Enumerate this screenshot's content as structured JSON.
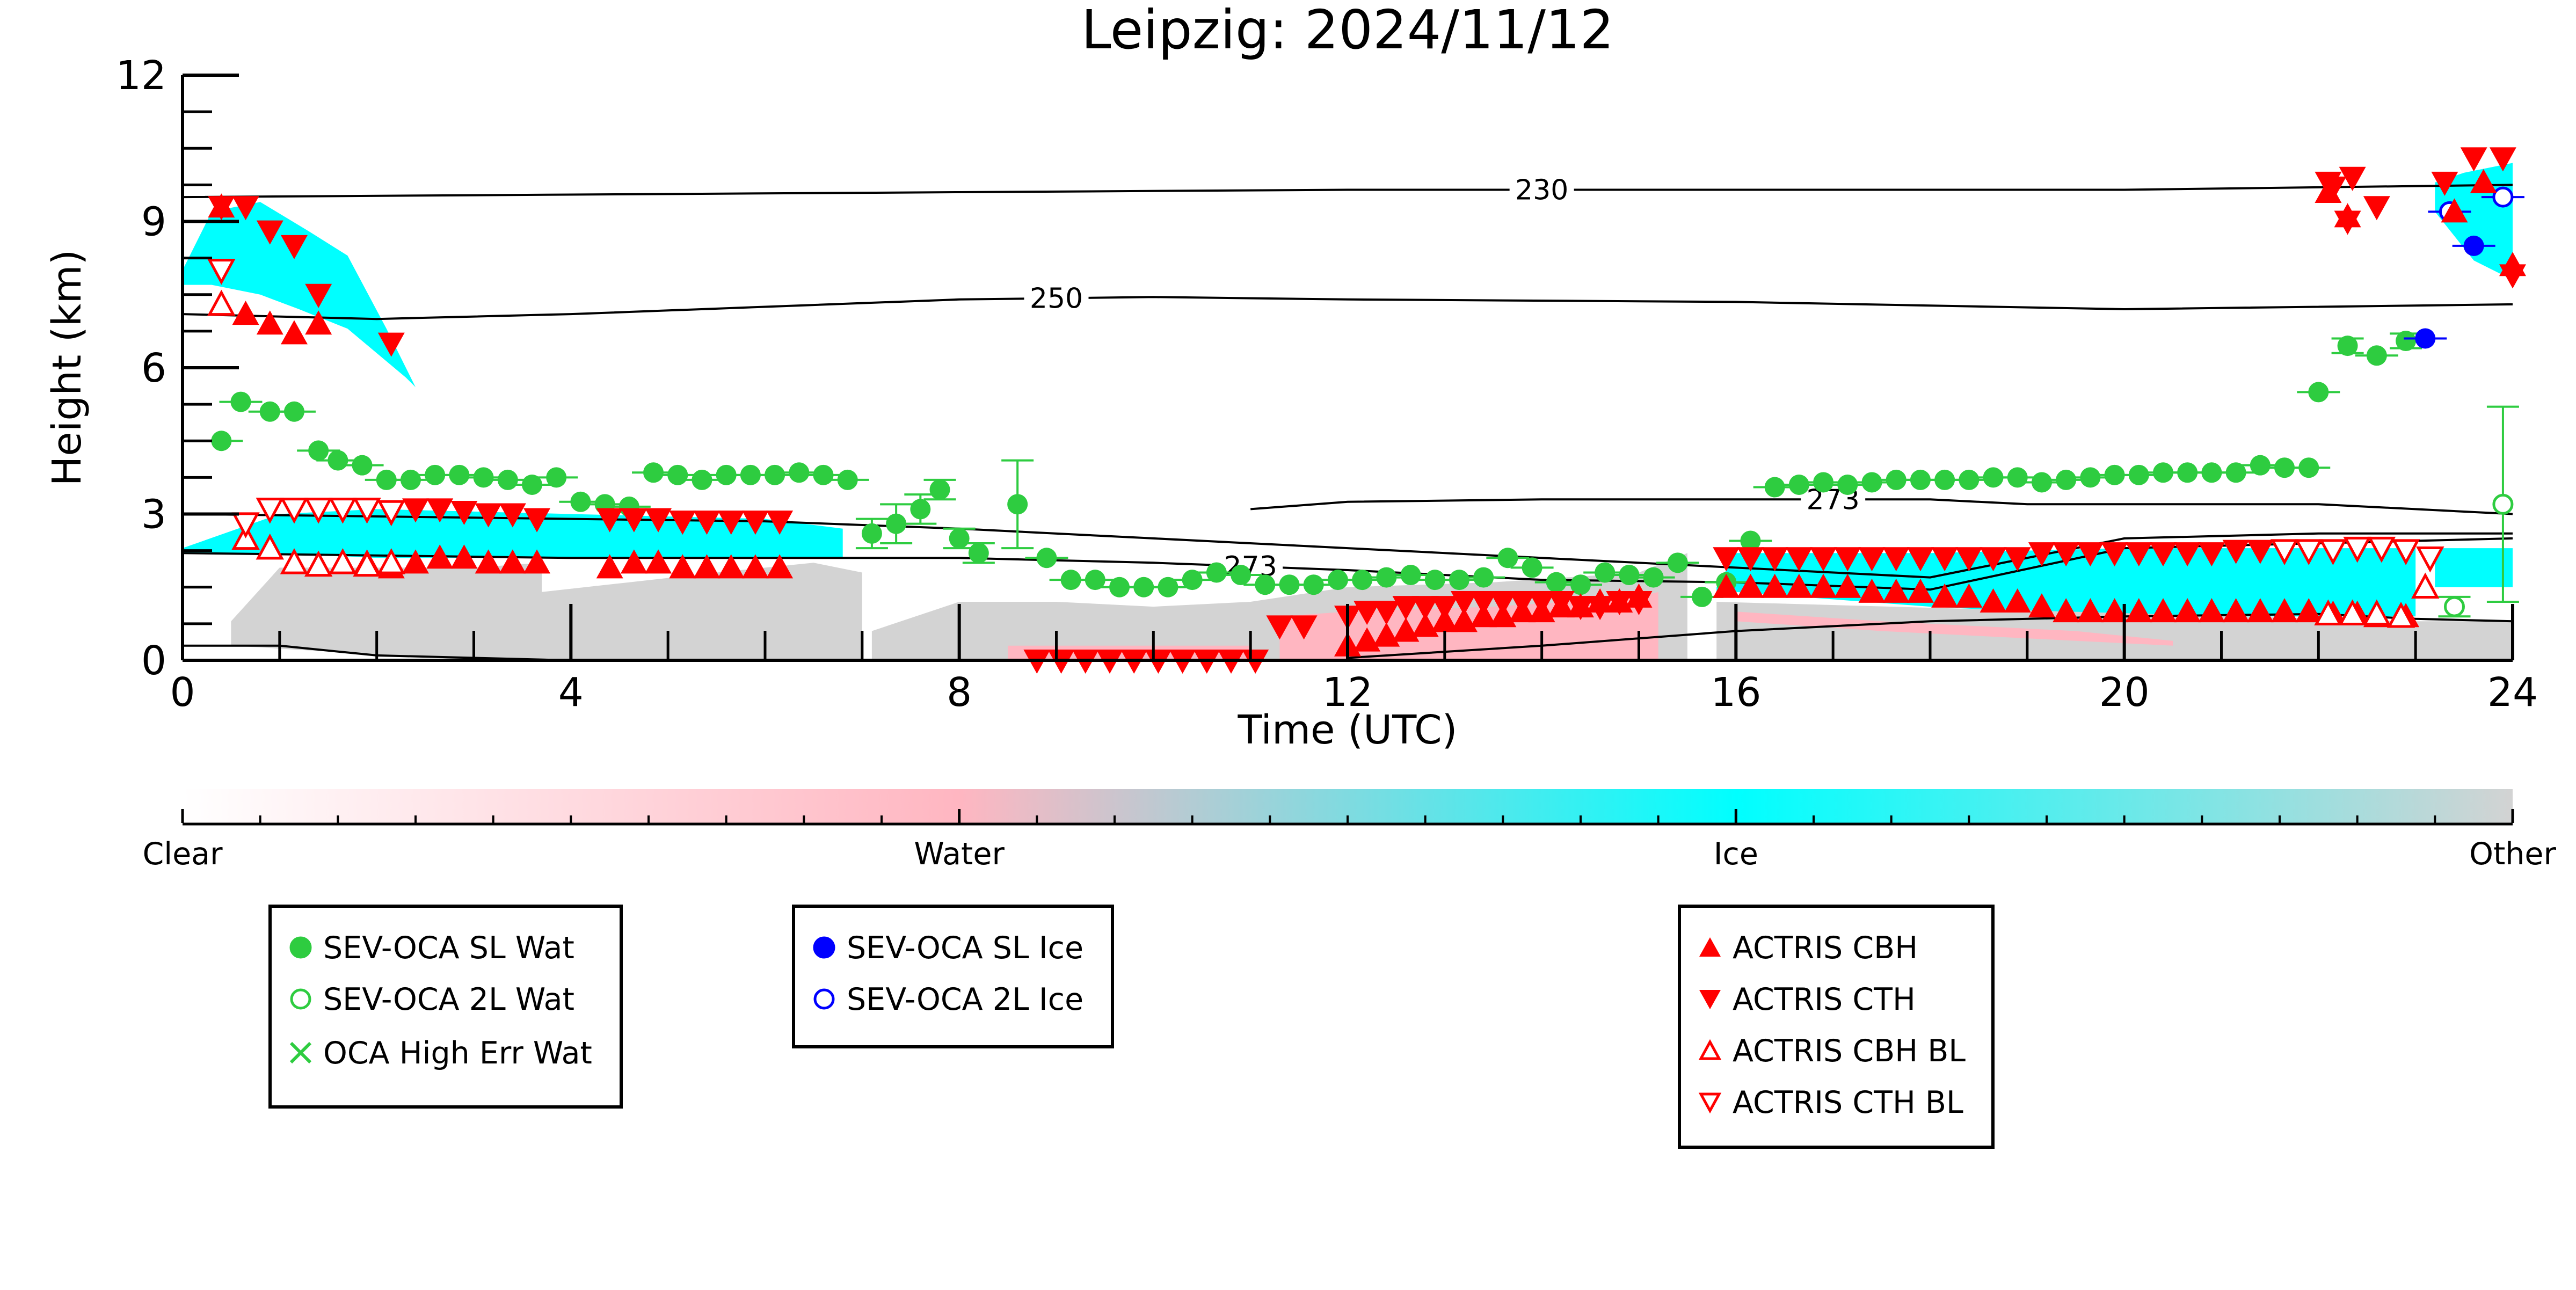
{
  "chart_data": {
    "type": "scatter",
    "title": "Leipzig: 2024/11/12",
    "xlabel": "Time (UTC)",
    "ylabel": "Height (km)",
    "xlim": [
      0,
      24
    ],
    "ylim": [
      0,
      12
    ],
    "x_ticks": [
      0,
      4,
      8,
      12,
      16,
      20,
      24
    ],
    "y_ticks": [
      0,
      3,
      6,
      9,
      12
    ],
    "colors": {
      "water": "#2ecc40",
      "ice": "#0000ff",
      "actris": "#ff0000",
      "cloud_ice": "#00ffff",
      "cloud_water": "#ffb6c1",
      "cloud_other": "#d3d3d3"
    },
    "colorbar": {
      "labels": [
        "Clear",
        "Water",
        "Ice",
        "Other"
      ],
      "gradient": [
        "#ffffff",
        "#ffb6c1",
        "#00ffff",
        "#d3d3d3"
      ]
    },
    "isotherms": [
      {
        "label": "230",
        "x": [
          0,
          4,
          8,
          12,
          16,
          20,
          22,
          24
        ],
        "y": [
          9.5,
          9.55,
          9.6,
          9.65,
          9.65,
          9.65,
          9.7,
          9.75
        ]
      },
      {
        "label": "250",
        "x": [
          0,
          2,
          4,
          6,
          8,
          10,
          12,
          16,
          20,
          24
        ],
        "y": [
          7.1,
          7.0,
          7.1,
          7.25,
          7.4,
          7.45,
          7.4,
          7.35,
          7.2,
          7.3
        ]
      },
      {
        "label": "273",
        "x": [
          0,
          2,
          4,
          6,
          8,
          10,
          12,
          14,
          16,
          18,
          20,
          22,
          24
        ],
        "y": [
          2.2,
          2.15,
          2.1,
          2.1,
          2.1,
          2.0,
          1.85,
          1.65,
          1.6,
          1.45,
          2.3,
          2.4,
          2.5
        ]
      },
      {
        "label": "273",
        "x": [
          11,
          12,
          14,
          16,
          18,
          19,
          20,
          22,
          24
        ],
        "y": [
          3.1,
          3.25,
          3.3,
          3.3,
          3.3,
          3.2,
          3.2,
          3.2,
          3.0
        ]
      },
      {
        "label": "",
        "x": [
          0,
          2,
          4,
          6,
          8,
          10,
          12,
          14,
          16,
          18,
          20,
          22,
          24
        ],
        "y": [
          3.0,
          2.95,
          2.9,
          2.85,
          2.7,
          2.5,
          2.3,
          2.1,
          1.9,
          1.7,
          2.5,
          2.6,
          2.6
        ]
      },
      {
        "label": "",
        "x": [
          0,
          1,
          2,
          3,
          4,
          5
        ],
        "y": [
          0.3,
          0.3,
          0.1,
          0.05,
          0.0,
          0.0
        ]
      },
      {
        "label": "",
        "x": [
          12,
          14,
          16,
          18,
          20,
          22,
          23,
          24
        ],
        "y": [
          0.05,
          0.3,
          0.6,
          0.8,
          0.9,
          0.95,
          0.85,
          0.8
        ]
      }
    ],
    "cloud_regions": [
      {
        "phase": "ice",
        "x": [
          0.0,
          0.3,
          0.8,
          1.3,
          1.7,
          2.1,
          2.4,
          2.3,
          1.7,
          1.2,
          0.8,
          0.3,
          0.0
        ],
        "y": [
          8.0,
          9.2,
          9.4,
          8.8,
          8.3,
          6.8,
          5.6,
          5.8,
          6.8,
          7.2,
          7.5,
          7.7,
          7.7
        ]
      },
      {
        "phase": "ice",
        "x": [
          0.0,
          1.0,
          2.0,
          4.0,
          6.0,
          6.8,
          6.8,
          6.0,
          4.0,
          2.0,
          1.0,
          0.0
        ],
        "y": [
          2.3,
          3.0,
          3.1,
          3.0,
          2.9,
          2.7,
          2.1,
          2.1,
          2.1,
          2.1,
          2.2,
          2.2
        ]
      },
      {
        "phase": "other",
        "x": [
          0.5,
          1.0,
          3.0,
          3.7,
          3.7,
          4.6,
          5.5,
          6.5,
          7.0,
          7.0,
          5.0,
          3.0,
          0.5
        ],
        "y": [
          0.8,
          1.9,
          1.9,
          2.0,
          1.4,
          1.6,
          1.8,
          2.0,
          1.8,
          0.0,
          0.0,
          0.0,
          0.3
        ]
      },
      {
        "phase": "other",
        "x": [
          7.1,
          8.0,
          9.0,
          10.0,
          11.0,
          12.0,
          13.5,
          15.0,
          15.5,
          15.5,
          7.1
        ],
        "y": [
          0.6,
          1.2,
          1.2,
          1.1,
          1.2,
          1.5,
          1.6,
          1.8,
          2.2,
          0.0,
          0.0
        ]
      },
      {
        "phase": "water",
        "x": [
          8.5,
          11.0,
          11.0,
          8.5
        ],
        "y": [
          0.3,
          0.3,
          0.0,
          0.0
        ]
      },
      {
        "phase": "water",
        "x": [
          11.3,
          12.0,
          13.5,
          15.0,
          15.2,
          15.2,
          11.3
        ],
        "y": [
          0.9,
          1.0,
          1.1,
          1.3,
          1.4,
          0.0,
          0.0
        ]
      },
      {
        "phase": "ice",
        "x": [
          15.8,
          16.0,
          18.0,
          20.0,
          22.0,
          23.0,
          23.0,
          22.0,
          20.0,
          18.0,
          16.0,
          15.8
        ],
        "y": [
          1.5,
          2.2,
          2.2,
          2.3,
          2.3,
          2.3,
          0.9,
          0.9,
          0.9,
          1.1,
          1.4,
          1.4
        ]
      },
      {
        "phase": "other",
        "x": [
          15.8,
          23.0,
          24.0,
          24.0,
          15.8
        ],
        "y": [
          1.2,
          0.8,
          0.8,
          0.0,
          0.0
        ]
      },
      {
        "phase": "water",
        "x": [
          16.0,
          17.5,
          19.5,
          20.5,
          20.5,
          19.5,
          17.5,
          16.0
        ],
        "y": [
          1.0,
          0.8,
          0.6,
          0.4,
          0.3,
          0.4,
          0.6,
          0.8
        ]
      },
      {
        "phase": "ice",
        "x": [
          23.2,
          23.5,
          24.0,
          24.0,
          23.6,
          23.2
        ],
        "y": [
          9.8,
          10.0,
          10.2,
          7.8,
          8.2,
          9.2
        ]
      },
      {
        "phase": "ice",
        "x": [
          23.2,
          24.0,
          24.0,
          23.2
        ],
        "y": [
          2.3,
          2.3,
          1.5,
          1.5
        ]
      }
    ],
    "series": [
      {
        "name": "SEV-OCA SL Wat",
        "marker": "filled-circle",
        "color": "#2ecc40",
        "x": [
          0.4,
          0.6,
          0.9,
          1.15,
          1.4,
          1.6,
          1.85,
          2.1,
          2.35,
          2.6,
          2.85,
          3.1,
          3.35,
          3.6,
          3.85,
          4.1,
          4.35,
          4.6,
          4.85,
          5.1,
          5.35,
          5.6,
          5.85,
          6.1,
          6.35,
          6.6,
          6.85,
          7.1,
          7.35,
          7.6,
          7.8,
          8.0,
          8.2,
          8.6,
          8.9,
          9.15,
          9.4,
          9.65,
          9.9,
          10.15,
          10.4,
          10.65,
          10.9,
          11.15,
          11.4,
          11.65,
          11.9,
          12.15,
          12.4,
          12.65,
          12.9,
          13.15,
          13.4,
          13.65,
          13.9,
          14.15,
          14.4,
          14.65,
          14.9,
          15.15,
          15.4,
          15.65,
          15.9,
          16.15,
          16.4,
          16.65,
          16.9,
          17.15,
          17.4,
          17.65,
          17.9,
          18.15,
          18.4,
          18.65,
          18.9,
          19.15,
          19.4,
          19.65,
          19.9,
          20.15,
          20.4,
          20.65,
          20.9,
          21.15,
          21.4,
          21.65,
          21.9,
          22.0,
          22.3,
          22.6,
          22.9
        ],
        "y": [
          4.5,
          5.3,
          5.1,
          5.1,
          4.3,
          4.1,
          4.0,
          3.7,
          3.7,
          3.8,
          3.8,
          3.75,
          3.7,
          3.6,
          3.75,
          3.25,
          3.2,
          3.15,
          3.85,
          3.8,
          3.7,
          3.8,
          3.8,
          3.8,
          3.85,
          3.8,
          3.7,
          2.6,
          2.8,
          3.1,
          3.5,
          2.5,
          2.2,
          3.2,
          2.1,
          1.65,
          1.65,
          1.5,
          1.5,
          1.5,
          1.65,
          1.8,
          1.75,
          1.55,
          1.55,
          1.55,
          1.65,
          1.65,
          1.7,
          1.75,
          1.65,
          1.65,
          1.7,
          2.1,
          1.9,
          1.6,
          1.55,
          1.8,
          1.75,
          1.7,
          2.0,
          1.3,
          1.6,
          2.45,
          3.55,
          3.6,
          3.65,
          3.6,
          3.65,
          3.7,
          3.7,
          3.7,
          3.7,
          3.75,
          3.75,
          3.65,
          3.7,
          3.75,
          3.8,
          3.8,
          3.85,
          3.85,
          3.85,
          3.85,
          4.0,
          3.95,
          3.95,
          5.5,
          6.45,
          6.25,
          6.55
        ],
        "err": [
          0.05,
          0.05,
          0.1,
          0.1,
          0.05,
          0.05,
          0.05,
          0.05,
          0.05,
          0.05,
          0.05,
          0.05,
          0.05,
          0.05,
          0.05,
          0.05,
          0.05,
          0.05,
          0.05,
          0.05,
          0.05,
          0.05,
          0.05,
          0.05,
          0.05,
          0.05,
          0.05,
          0.3,
          0.4,
          0.3,
          0.2,
          0.2,
          0.2,
          0.9,
          0.1,
          0.05,
          0.05,
          0.05,
          0.05,
          0.05,
          0.05,
          0.05,
          0.05,
          0.05,
          0.05,
          0.05,
          0.05,
          0.05,
          0.05,
          0.05,
          0.05,
          0.05,
          0.05,
          0.05,
          0.05,
          0.05,
          0.05,
          0.05,
          0.05,
          0.05,
          0.05,
          0.05,
          0.05,
          0.05,
          0.05,
          0.05,
          0.05,
          0.05,
          0.05,
          0.05,
          0.05,
          0.05,
          0.05,
          0.05,
          0.05,
          0.05,
          0.05,
          0.05,
          0.05,
          0.05,
          0.05,
          0.05,
          0.05,
          0.05,
          0.05,
          0.05,
          0.05,
          0.1,
          0.15,
          0.1,
          0.15
        ]
      },
      {
        "name": "SEV-OCA 2L Wat",
        "marker": "open-circle",
        "color": "#2ecc40",
        "x": [
          23.4,
          23.9
        ],
        "y": [
          1.1,
          3.2
        ],
        "err": [
          0.2,
          2.0
        ]
      },
      {
        "name": "OCA High Err Wat",
        "marker": "x",
        "color": "#2ecc40",
        "x": [],
        "y": []
      },
      {
        "name": "SEV-OCA SL Ice",
        "marker": "filled-circle",
        "color": "#0000ff",
        "x": [
          23.1,
          23.6
        ],
        "y": [
          6.6,
          8.5
        ]
      },
      {
        "name": "SEV-OCA 2L Ice",
        "marker": "open-circle",
        "color": "#0000ff",
        "x": [
          23.35,
          23.9
        ],
        "y": [
          9.2,
          9.5
        ]
      },
      {
        "name": "ACTRIS CBH",
        "marker": "triangle-up",
        "color": "#ff0000",
        "x": [
          0.4,
          0.65,
          0.9,
          1.15,
          1.4,
          1.65,
          1.9,
          2.15,
          2.4,
          2.65,
          2.9,
          3.15,
          3.4,
          3.65,
          4.4,
          4.65,
          4.9,
          5.15,
          5.4,
          5.65,
          5.9,
          6.15,
          12.0,
          12.2,
          12.4,
          12.6,
          12.8,
          13.0,
          13.2,
          13.4,
          13.6,
          13.8,
          14.0,
          14.2,
          14.4,
          14.6,
          14.8,
          15.0,
          15.9,
          16.15,
          16.4,
          16.65,
          16.9,
          17.15,
          17.4,
          17.65,
          17.9,
          18.15,
          18.4,
          18.65,
          18.9,
          19.15,
          19.4,
          19.65,
          19.9,
          20.15,
          20.4,
          20.65,
          20.9,
          21.15,
          21.4,
          21.65,
          21.9,
          22.15,
          22.4,
          22.6,
          22.9,
          23.4,
          23.7,
          24.0,
          22.1,
          22.3
        ],
        "y": [
          9.3,
          7.1,
          6.9,
          6.7,
          6.9,
          2.0,
          2.0,
          1.9,
          2.0,
          2.1,
          2.1,
          2.0,
          2.0,
          2.0,
          1.9,
          2.0,
          2.0,
          1.9,
          1.9,
          1.9,
          1.9,
          1.9,
          0.3,
          0.4,
          0.5,
          0.6,
          0.7,
          0.8,
          0.8,
          0.9,
          0.9,
          1.0,
          1.0,
          1.1,
          1.1,
          1.2,
          1.2,
          1.3,
          1.5,
          1.5,
          1.5,
          1.5,
          1.5,
          1.5,
          1.4,
          1.4,
          1.4,
          1.3,
          1.3,
          1.2,
          1.2,
          1.1,
          1.0,
          1.0,
          1.0,
          1.0,
          1.0,
          1.0,
          1.0,
          1.0,
          1.0,
          1.0,
          1.0,
          0.95,
          0.95,
          0.9,
          0.9,
          9.2,
          9.8,
          8.1,
          9.6,
          9.1
        ]
      },
      {
        "name": "ACTRIS CTH",
        "marker": "triangle-down",
        "color": "#ff0000",
        "x": [
          0.4,
          0.65,
          0.9,
          1.15,
          1.4,
          2.15,
          1.65,
          1.9,
          2.4,
          2.65,
          2.9,
          3.15,
          3.4,
          3.65,
          4.4,
          4.65,
          4.9,
          5.15,
          5.4,
          5.65,
          5.9,
          6.15,
          8.8,
          9.05,
          9.3,
          9.55,
          9.8,
          10.05,
          10.3,
          10.55,
          10.8,
          11.05,
          11.3,
          11.55,
          12.0,
          12.2,
          12.4,
          12.6,
          12.8,
          13.0,
          13.2,
          13.4,
          13.6,
          13.8,
          14.0,
          14.2,
          14.4,
          14.6,
          14.8,
          15.0,
          15.9,
          16.15,
          16.4,
          16.65,
          16.9,
          17.15,
          17.4,
          17.65,
          17.9,
          18.15,
          18.4,
          18.65,
          18.9,
          19.15,
          19.4,
          19.65,
          19.9,
          20.15,
          20.4,
          20.65,
          20.9,
          21.15,
          21.4,
          21.65,
          21.9,
          22.1,
          22.35,
          22.6,
          23.3,
          23.6,
          23.9,
          24.0,
          22.15,
          22.3
        ],
        "y": [
          9.3,
          9.3,
          8.8,
          8.5,
          7.5,
          6.5,
          3.1,
          3.1,
          3.1,
          3.1,
          3.05,
          3.0,
          3.0,
          2.9,
          2.9,
          2.9,
          2.9,
          2.85,
          2.85,
          2.85,
          2.85,
          2.85,
          0.0,
          0.0,
          0.0,
          0.0,
          0.0,
          0.0,
          0.0,
          0.0,
          0.0,
          0.0,
          0.7,
          0.7,
          0.9,
          1.0,
          1.0,
          1.1,
          1.1,
          1.1,
          1.2,
          1.2,
          1.2,
          1.2,
          1.2,
          1.2,
          1.1,
          1.1,
          1.2,
          1.2,
          2.1,
          2.1,
          2.1,
          2.1,
          2.1,
          2.1,
          2.1,
          2.1,
          2.1,
          2.1,
          2.1,
          2.1,
          2.1,
          2.2,
          2.2,
          2.2,
          2.2,
          2.2,
          2.2,
          2.2,
          2.2,
          2.25,
          2.25,
          2.25,
          2.25,
          9.8,
          9.9,
          9.3,
          9.8,
          10.3,
          10.3,
          7.9,
          9.7,
          9.0
        ]
      },
      {
        "name": "ACTRIS CBH BL",
        "marker": "open-triangle-up",
        "color": "#ff0000",
        "x": [
          0.4,
          0.65,
          0.9,
          1.15,
          1.4,
          1.65,
          1.9,
          2.15,
          22.1,
          22.35,
          22.6,
          22.85,
          23.1
        ],
        "y": [
          7.3,
          2.5,
          2.3,
          2.0,
          1.95,
          2.0,
          1.95,
          2.0,
          0.95,
          0.95,
          0.95,
          0.9,
          1.5
        ]
      },
      {
        "name": "ACTRIS CTH BL",
        "marker": "open-triangle-down",
        "color": "#ff0000",
        "x": [
          0.4,
          0.65,
          0.9,
          1.15,
          1.4,
          1.65,
          1.9,
          2.15,
          21.65,
          21.9,
          22.15,
          22.4,
          22.65,
          22.9,
          23.15
        ],
        "y": [
          8.0,
          2.8,
          3.1,
          3.1,
          3.1,
          3.1,
          3.1,
          3.05,
          2.25,
          2.25,
          2.25,
          2.3,
          2.3,
          2.25,
          2.1
        ]
      }
    ],
    "legends": [
      {
        "entries": [
          "SEV-OCA SL Wat",
          "SEV-OCA 2L Wat",
          "OCA High Err Wat"
        ]
      },
      {
        "entries": [
          "SEV-OCA SL Ice",
          "SEV-OCA 2L Ice"
        ]
      },
      {
        "entries": [
          "ACTRIS CBH",
          "ACTRIS CTH",
          "ACTRIS CBH BL",
          "ACTRIS CTH BL"
        ]
      }
    ]
  }
}
